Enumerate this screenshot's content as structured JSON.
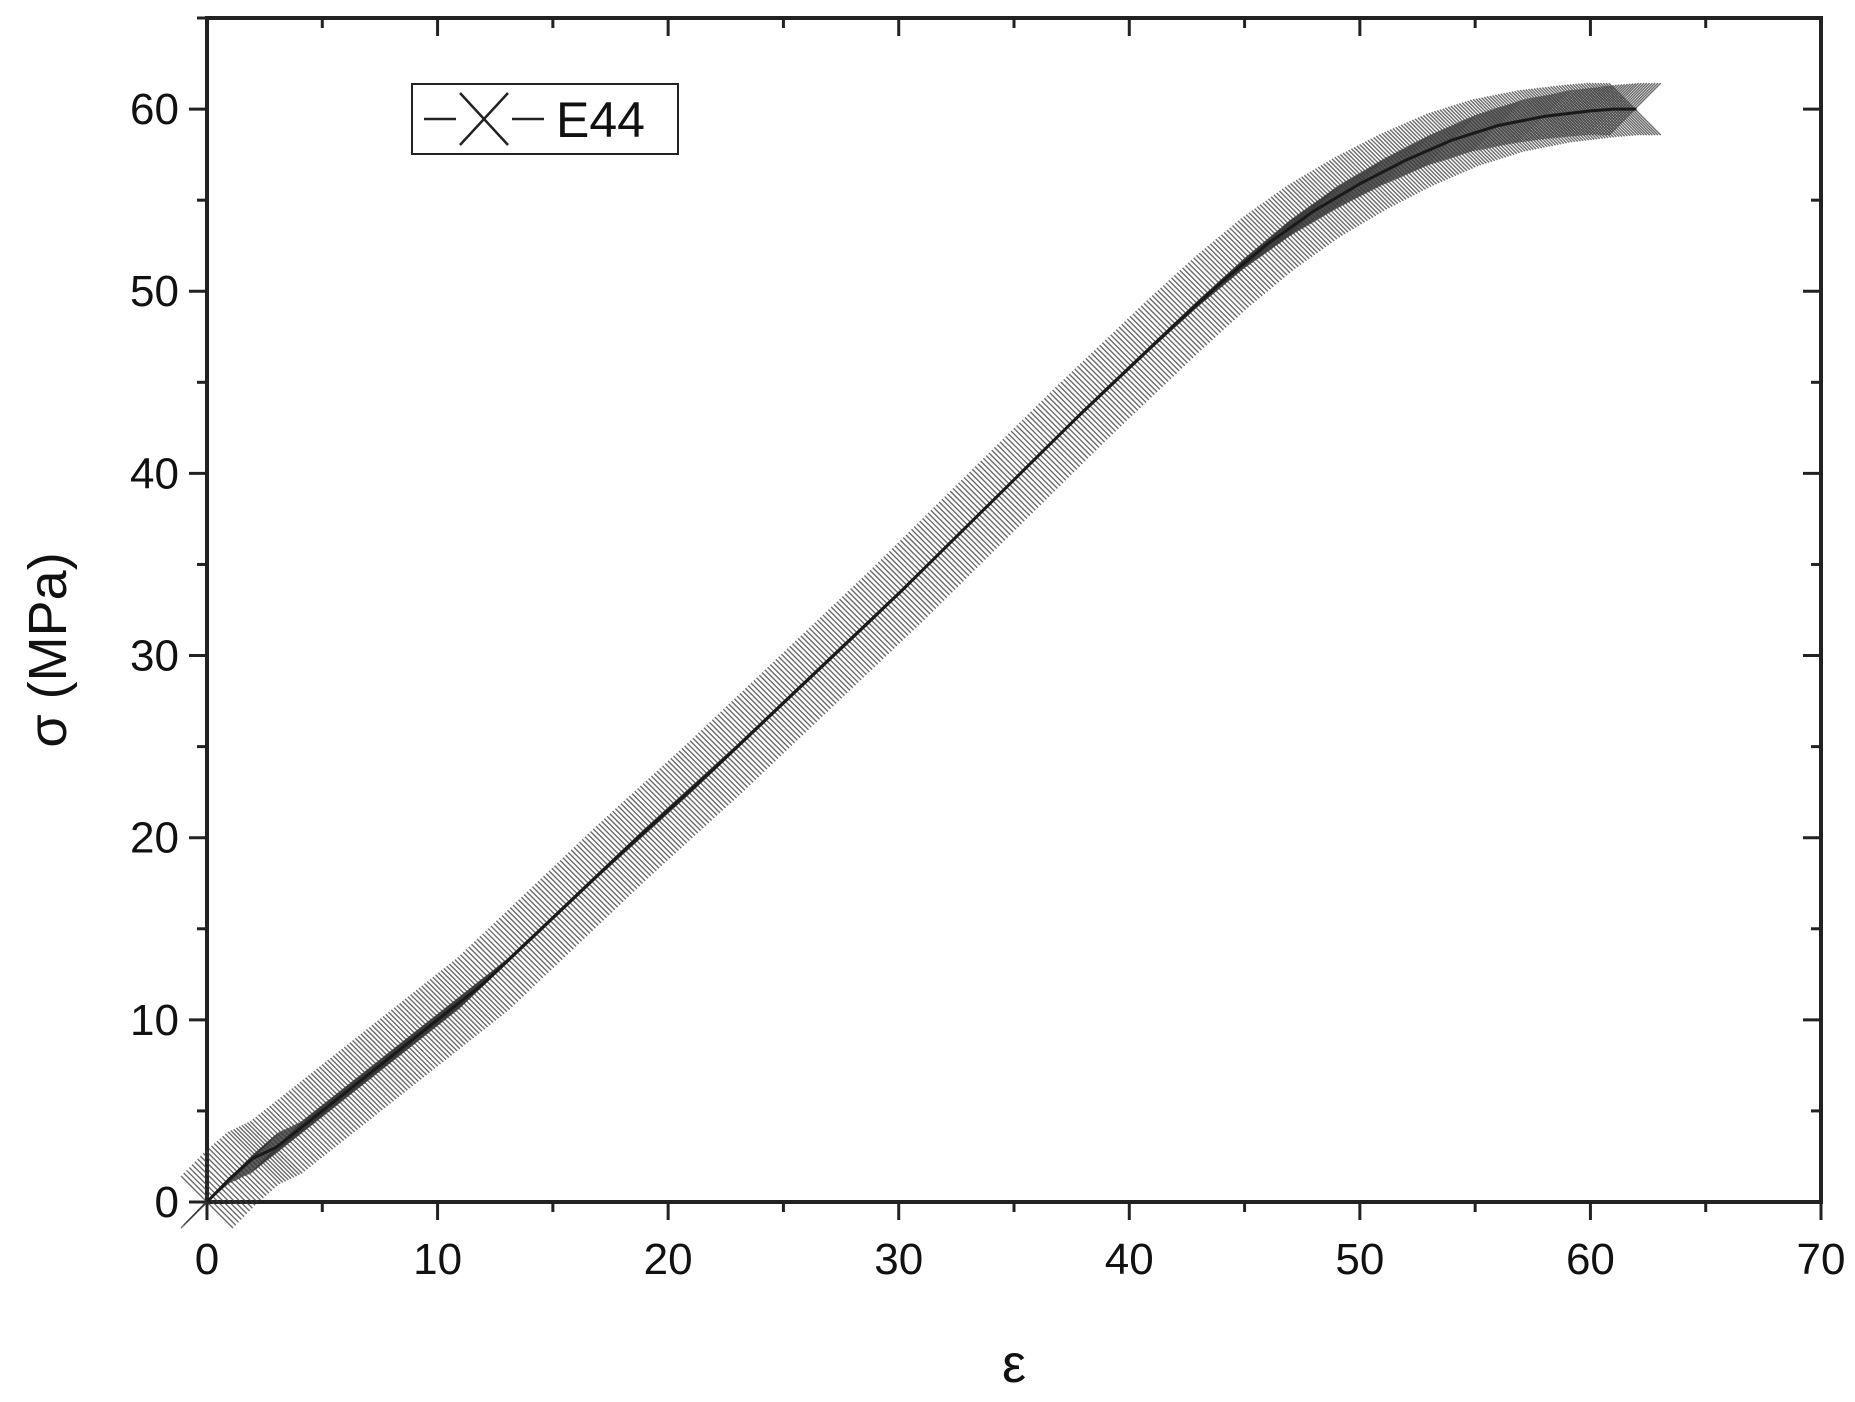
{
  "chart_data": {
    "type": "line",
    "title": "",
    "xlabel": "ε",
    "ylabel": "σ (MPa)",
    "xlim": [
      0,
      70
    ],
    "ylim": [
      0,
      65
    ],
    "x_ticks": [
      0,
      10,
      20,
      30,
      40,
      50,
      60,
      70
    ],
    "y_ticks": [
      0,
      10,
      20,
      30,
      40,
      50,
      60
    ],
    "x_tick_labels": [
      "0",
      "10",
      "20",
      "30",
      "40",
      "50",
      "60",
      "70"
    ],
    "y_tick_labels": [
      "0",
      "10",
      "20",
      "30",
      "40",
      "50",
      "60"
    ],
    "grid": false,
    "legend_position": "top-left",
    "series": [
      {
        "name": "E44",
        "marker": "x",
        "color": "#3a3a3a",
        "x": [
          0,
          1,
          2,
          3,
          4,
          6,
          8,
          10,
          12,
          14,
          16,
          18,
          20,
          22,
          24,
          26,
          28,
          30,
          32,
          34,
          36,
          38,
          40,
          42,
          44,
          46,
          48,
          50,
          52,
          54,
          56,
          58,
          60,
          61,
          62
        ],
        "y": [
          0,
          1.3,
          2.4,
          3.0,
          4.0,
          6.0,
          8.0,
          10.0,
          12.0,
          14.4,
          16.8,
          19.2,
          21.5,
          23.8,
          26.2,
          28.6,
          31.0,
          33.4,
          35.9,
          38.4,
          40.9,
          43.4,
          45.8,
          48.2,
          50.5,
          52.6,
          54.4,
          55.9,
          57.2,
          58.3,
          59.1,
          59.6,
          59.9,
          60.0,
          60.0
        ]
      }
    ]
  }
}
